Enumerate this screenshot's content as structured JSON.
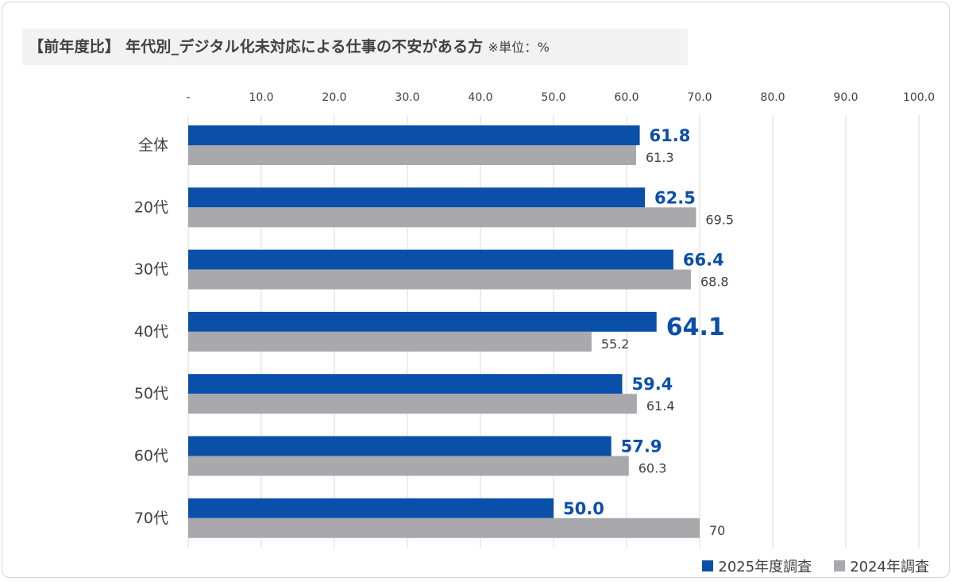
{
  "title": "【前年度比】 年代別_デジタル化未対応による仕事の不安がある方",
  "unit_note": "※単位：%",
  "colors": {
    "series_2025": "#0a4fa8",
    "series_2024": "#a8a8ad",
    "label_2025": "#0a4fa8",
    "label_2024": "#404040",
    "grid": "#d9d9d9",
    "text": "#404040"
  },
  "chart_data": {
    "type": "bar",
    "orientation": "horizontal",
    "categories": [
      "全体",
      "20代",
      "30代",
      "40代",
      "50代",
      "60代",
      "70代"
    ],
    "series": [
      {
        "name": "2025年度調査",
        "values": [
          61.8,
          62.5,
          66.4,
          64.1,
          59.4,
          57.9,
          50.0
        ],
        "labels": [
          "61.8",
          "62.5",
          "66.4",
          "64.1",
          "59.4",
          "57.9",
          "50.0"
        ]
      },
      {
        "name": "2024年調査",
        "values": [
          61.3,
          69.5,
          68.8,
          55.2,
          61.4,
          60.3,
          70
        ],
        "labels": [
          "61.3",
          "69.5",
          "68.8",
          "55.2",
          "61.4",
          "60.3",
          "70"
        ]
      }
    ],
    "xlim": [
      0,
      100
    ],
    "xticks": [
      "-",
      "10.0",
      "20.0",
      "30.0",
      "40.0",
      "50.0",
      "60.0",
      "70.0",
      "80.0",
      "90.0",
      "100.0"
    ],
    "xaxis_position": "top",
    "grid": true,
    "legend_position": "bottom-right",
    "emphasized_label_index": 3
  }
}
